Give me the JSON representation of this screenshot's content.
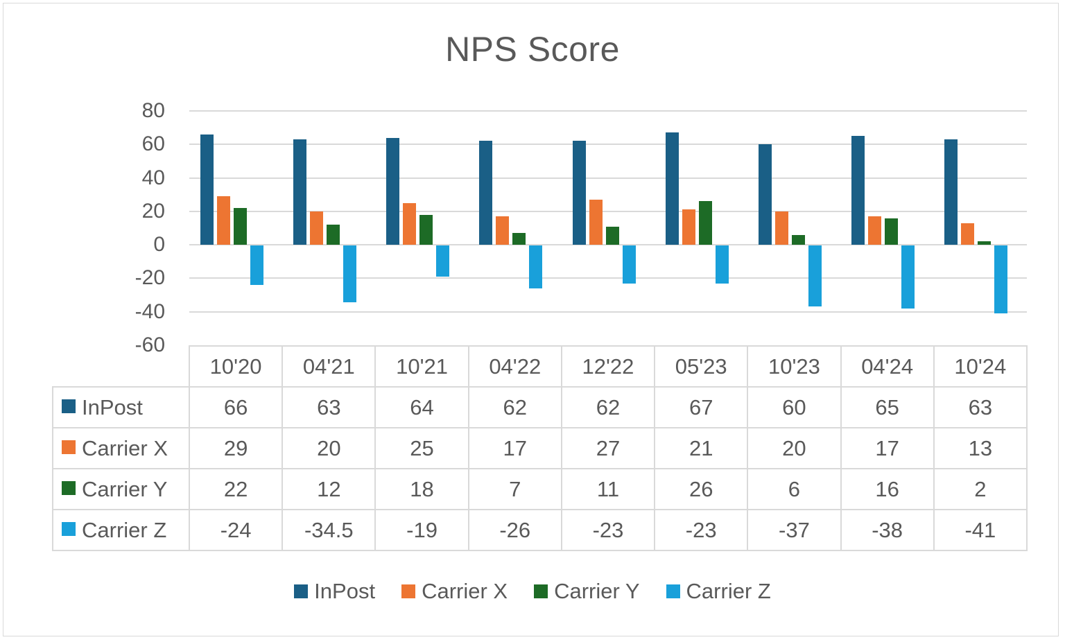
{
  "chart_data": {
    "type": "bar",
    "title": "NPS Score",
    "xlabel": "",
    "ylabel": "",
    "ylim": [
      -60,
      80
    ],
    "yticks": [
      80,
      60,
      40,
      20,
      0,
      -20,
      -40,
      -60
    ],
    "grid": true,
    "legend_position": "bottom",
    "data_table": true,
    "categories": [
      "10'20",
      "04'21",
      "10'21",
      "04'22",
      "12'22",
      "05'23",
      "10'23",
      "04'24",
      "10'24"
    ],
    "series": [
      {
        "name": "InPost",
        "color": "#1a5f86",
        "values": [
          66,
          63,
          64,
          62,
          62,
          67,
          60,
          65,
          63
        ]
      },
      {
        "name": "Carrier X",
        "color": "#ed7532",
        "values": [
          29,
          20,
          25,
          17,
          27,
          21,
          20,
          17,
          13
        ]
      },
      {
        "name": "Carrier Y",
        "color": "#1d6b26",
        "values": [
          22,
          12,
          18,
          7,
          11,
          26,
          6,
          16,
          2
        ]
      },
      {
        "name": "Carrier Z",
        "color": "#19a0da",
        "values": [
          -24,
          -34.5,
          -19,
          -26,
          -23,
          -23,
          -37,
          -38,
          -41
        ]
      }
    ]
  }
}
